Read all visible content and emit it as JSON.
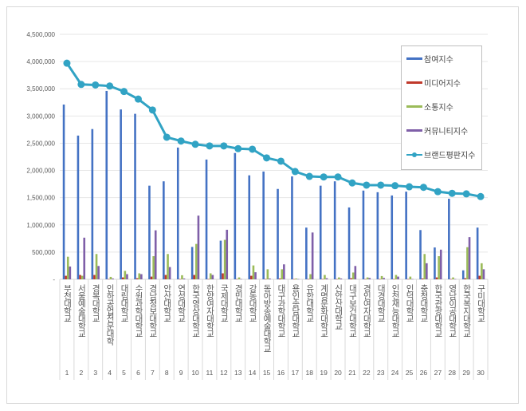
{
  "chart_data": {
    "type": "bar",
    "title": "",
    "xlabel": "",
    "ylabel": "",
    "ylim": [
      0,
      4500000
    ],
    "yticks": [
      "-",
      "500,000",
      "1,000,000",
      "1,500,000",
      "2,000,000",
      "2,500,000",
      "3,000,000",
      "3,500,000",
      "4,000,000",
      "4,500,000"
    ],
    "grid": true,
    "legend_position": "top-right",
    "ranks": [
      1,
      2,
      3,
      4,
      5,
      6,
      7,
      8,
      9,
      10,
      11,
      12,
      13,
      14,
      15,
      16,
      17,
      18,
      19,
      20,
      21,
      22,
      23,
      24,
      25,
      26,
      27,
      28,
      29,
      30
    ],
    "categories": [
      "부천대학교",
      "서울예술대학교",
      "경복대학교",
      "인하공업전문대학",
      "대림대학교",
      "수원과학대학교",
      "경남정보대학교",
      "안산대학교",
      "연성대학교",
      "한국영상대학교",
      "한양여자대학교",
      "국제대학교",
      "경민대학교",
      "강동대학교",
      "동아방송예술대학교",
      "대구과학대학교",
      "용인송담대학교",
      "유한대학교",
      "계명문화대학교",
      "신안산대학교",
      "대구보건대학교",
      "경인여자대학교",
      "대경대학교",
      "인천재능대학교",
      "인덕대학교",
      "충청대학교",
      "한국관광대학교",
      "영남이공대학교",
      "한국복지대학교",
      "구미대학교"
    ],
    "series": [
      {
        "name": "참여지수",
        "type": "bar",
        "color": "#4472c4",
        "values": [
          3210000,
          2640000,
          2760000,
          3460000,
          3120000,
          3040000,
          1720000,
          1800000,
          2420000,
          595000,
          2200000,
          710000,
          2320000,
          1910000,
          1980000,
          1660000,
          1890000,
          950000,
          1720000,
          1800000,
          1320000,
          1630000,
          1600000,
          1540000,
          1610000,
          905000,
          585000,
          1480000,
          165000,
          950000
        ]
      },
      {
        "name": "미디어지수",
        "type": "bar",
        "color": "#c0392b",
        "values": [
          65000,
          80000,
          80000,
          5000,
          35000,
          20000,
          50000,
          80000,
          5000,
          80000,
          5000,
          110000,
          5000,
          65000,
          5000,
          15000,
          5000,
          5000,
          5000,
          5000,
          20000,
          5000,
          5000,
          5000,
          5000,
          15000,
          35000,
          5000,
          20000,
          65000
        ]
      },
      {
        "name": "소통지수",
        "type": "bar",
        "color": "#9bbb59",
        "values": [
          415000,
          65000,
          465000,
          45000,
          155000,
          110000,
          425000,
          465000,
          75000,
          650000,
          110000,
          725000,
          35000,
          255000,
          185000,
          185000,
          15000,
          95000,
          80000,
          35000,
          125000,
          35000,
          60000,
          80000,
          50000,
          465000,
          425000,
          35000,
          590000,
          295000
        ]
      },
      {
        "name": "커뮤니티지수",
        "type": "bar",
        "color": "#7f5fa8",
        "values": [
          235000,
          765000,
          245000,
          15000,
          95000,
          95000,
          900000,
          225000,
          15000,
          1170000,
          80000,
          910000,
          5000,
          130000,
          15000,
          275000,
          5000,
          860000,
          20000,
          15000,
          245000,
          25000,
          25000,
          50000,
          5000,
          295000,
          545000,
          5000,
          775000,
          185000
        ]
      },
      {
        "name": "브랜드평판지수",
        "type": "line",
        "color": "#31a3c4",
        "values": [
          3970000,
          3580000,
          3570000,
          3550000,
          3450000,
          3310000,
          3110000,
          2610000,
          2540000,
          2480000,
          2450000,
          2450000,
          2400000,
          2390000,
          2230000,
          2170000,
          1980000,
          1890000,
          1880000,
          1880000,
          1770000,
          1730000,
          1730000,
          1720000,
          1700000,
          1690000,
          1610000,
          1580000,
          1570000,
          1520000
        ]
      }
    ]
  }
}
